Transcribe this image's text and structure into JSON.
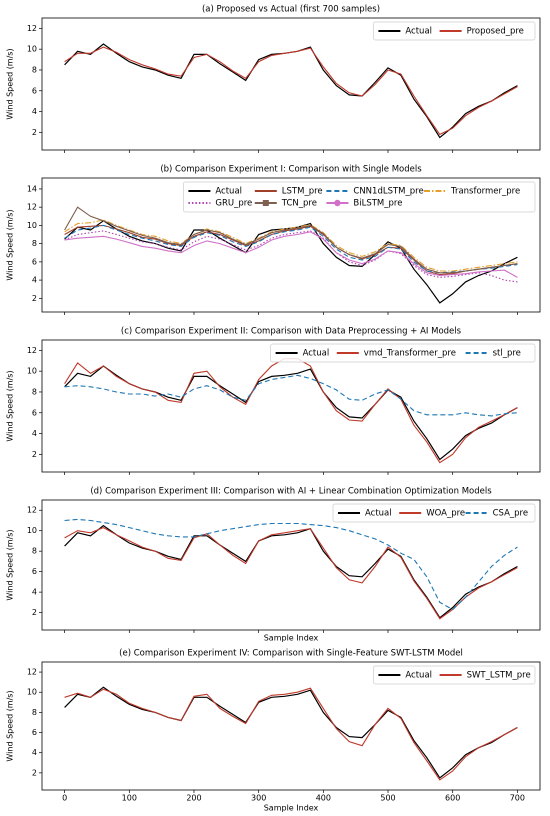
{
  "chart_data": [
    {
      "type": "line",
      "title": "(a) Proposed vs Actual (first 700 samples)",
      "ylabel": "Wind Speed (m/s)",
      "x": [
        0,
        20,
        40,
        60,
        80,
        100,
        120,
        140,
        160,
        180,
        200,
        220,
        240,
        260,
        280,
        300,
        320,
        340,
        360,
        380,
        400,
        420,
        440,
        460,
        480,
        500,
        520,
        540,
        560,
        580,
        600,
        620,
        640,
        660,
        680,
        700
      ],
      "series": [
        {
          "name": "Actual",
          "color": "#000000",
          "dash": "solid",
          "values": [
            8.5,
            9.8,
            9.5,
            10.5,
            9.6,
            8.8,
            8.3,
            8.0,
            7.5,
            7.2,
            9.5,
            9.5,
            8.6,
            7.8,
            7.0,
            9.0,
            9.5,
            9.6,
            9.8,
            10.2,
            8.0,
            6.5,
            5.6,
            5.5,
            6.8,
            8.2,
            7.5,
            5.2,
            3.5,
            1.5,
            2.5,
            3.8,
            4.5,
            5.0,
            5.8,
            6.5
          ]
        },
        {
          "name": "Proposed_pre",
          "color": "#c0392b",
          "dash": "solid",
          "values": [
            8.8,
            9.6,
            9.6,
            10.2,
            9.7,
            9.0,
            8.5,
            8.1,
            7.6,
            7.4,
            9.2,
            9.5,
            8.8,
            7.9,
            7.2,
            8.8,
            9.4,
            9.6,
            9.8,
            10.1,
            8.3,
            6.7,
            5.8,
            5.5,
            6.6,
            8.0,
            7.6,
            5.5,
            3.6,
            1.8,
            2.4,
            3.6,
            4.4,
            5.0,
            5.7,
            6.4
          ]
        }
      ],
      "xlim": [
        -35,
        735
      ],
      "xticks": [
        0,
        100,
        200,
        300,
        400,
        500,
        600,
        700
      ],
      "show_xticklabels": false,
      "ylim": [
        0.3,
        13
      ],
      "yticks": [
        2,
        4,
        6,
        8,
        10,
        12
      ],
      "legend": "upper right",
      "legend_ncol": 2
    },
    {
      "type": "line",
      "title": "(b) Comparison Experiment I: Comparison with Single Models",
      "ylabel": "Wind Speed (m/s)",
      "x": [
        0,
        20,
        40,
        60,
        80,
        100,
        120,
        140,
        160,
        180,
        200,
        220,
        240,
        260,
        280,
        300,
        320,
        340,
        360,
        380,
        400,
        420,
        440,
        460,
        480,
        500,
        520,
        540,
        560,
        580,
        600,
        620,
        640,
        660,
        680,
        700
      ],
      "series": [
        {
          "name": "Actual",
          "color": "#000000",
          "dash": "solid",
          "values": [
            8.5,
            9.8,
            9.5,
            10.5,
            9.6,
            8.8,
            8.3,
            8.0,
            7.5,
            7.2,
            9.5,
            9.5,
            8.6,
            7.8,
            7.0,
            9.0,
            9.5,
            9.6,
            9.8,
            10.2,
            8.0,
            6.5,
            5.6,
            5.5,
            6.8,
            8.2,
            7.5,
            5.2,
            3.5,
            1.5,
            2.5,
            3.8,
            4.5,
            5.0,
            5.8,
            6.5
          ]
        },
        {
          "name": "LSTM_pre",
          "color": "#a0402a",
          "dash": "solid",
          "values": [
            9.0,
            9.8,
            9.9,
            10.0,
            9.6,
            9.2,
            8.7,
            8.5,
            8.0,
            7.8,
            8.8,
            9.3,
            9.0,
            8.4,
            7.8,
            8.3,
            9.0,
            9.4,
            9.6,
            9.9,
            9.0,
            7.6,
            6.8,
            6.3,
            6.8,
            7.6,
            7.5,
            6.2,
            5.0,
            4.6,
            4.7,
            5.0,
            5.2,
            5.4,
            5.6,
            5.8
          ]
        },
        {
          "name": "CNN1dLSTM_pre",
          "color": "#1f77b4",
          "dash": "dashed",
          "values": [
            8.6,
            9.5,
            9.7,
            10.0,
            9.5,
            9.0,
            8.6,
            8.3,
            7.9,
            7.7,
            8.7,
            9.2,
            8.9,
            8.2,
            7.7,
            8.2,
            9.0,
            9.3,
            9.5,
            9.8,
            8.8,
            7.4,
            6.5,
            6.2,
            6.6,
            7.6,
            7.4,
            6.0,
            5.0,
            4.8,
            4.9,
            5.0,
            5.2,
            5.3,
            5.5,
            5.7
          ]
        },
        {
          "name": "Transformer_pre",
          "color": "#e69f2a",
          "dash": "dashdot",
          "values": [
            9.3,
            10.2,
            10.3,
            10.6,
            10.0,
            9.5,
            9.0,
            8.8,
            8.3,
            8.0,
            9.0,
            9.6,
            9.3,
            8.7,
            8.0,
            8.6,
            9.3,
            9.6,
            9.8,
            10.1,
            9.2,
            7.8,
            7.0,
            6.6,
            7.1,
            8.0,
            7.8,
            6.5,
            5.4,
            5.0,
            5.0,
            5.2,
            5.4,
            5.6,
            5.8,
            6.0
          ]
        },
        {
          "name": "GRU_pre",
          "color": "#b040b0",
          "dash": "dotted",
          "values": [
            8.4,
            9.0,
            9.2,
            9.4,
            9.0,
            8.6,
            8.2,
            8.0,
            7.6,
            7.3,
            8.2,
            8.8,
            8.5,
            7.9,
            7.3,
            7.8,
            8.6,
            9.0,
            9.2,
            9.4,
            8.6,
            7.0,
            6.0,
            5.6,
            6.2,
            7.2,
            6.9,
            5.6,
            4.6,
            4.3,
            4.4,
            4.6,
            4.8,
            4.5,
            4.0,
            3.8
          ]
        },
        {
          "name": "TCN_pre",
          "color": "#7f5f4f",
          "dash": "solid",
          "marker": "square",
          "values": [
            9.5,
            12.0,
            11.0,
            10.5,
            9.9,
            9.4,
            8.9,
            8.6,
            8.1,
            7.9,
            9.0,
            9.5,
            9.2,
            8.5,
            7.9,
            8.5,
            9.2,
            9.5,
            9.7,
            10.0,
            9.1,
            7.6,
            6.8,
            6.4,
            6.9,
            7.9,
            7.7,
            6.3,
            5.2,
            4.8,
            4.8,
            5.0,
            5.2,
            5.4,
            5.6,
            5.8
          ]
        },
        {
          "name": "BiLSTM_pre",
          "color": "#d070c8",
          "dash": "solid",
          "marker": "circle",
          "values": [
            8.4,
            8.6,
            8.7,
            8.8,
            8.5,
            8.1,
            7.7,
            7.5,
            7.2,
            7.0,
            7.8,
            8.3,
            8.0,
            7.5,
            7.0,
            7.6,
            8.4,
            8.8,
            9.0,
            9.3,
            8.5,
            7.0,
            6.2,
            5.8,
            6.3,
            7.2,
            7.0,
            5.8,
            4.8,
            4.5,
            4.6,
            4.7,
            4.9,
            5.0,
            5.1,
            4.3
          ]
        }
      ],
      "xlim": [
        -35,
        735
      ],
      "xticks": [
        0,
        100,
        200,
        300,
        400,
        500,
        600,
        700
      ],
      "show_xticklabels": false,
      "ylim": [
        0.5,
        15.2
      ],
      "yticks": [
        2,
        4,
        6,
        8,
        10,
        12,
        14
      ],
      "legend": "upper right",
      "legend_ncol": 4
    },
    {
      "type": "line",
      "title": "(c) Comparison Experiment II: Comparison with Data Preprocessing + AI Models",
      "ylabel": "Wind Speed (m/s)",
      "x": [
        0,
        20,
        40,
        60,
        80,
        100,
        120,
        140,
        160,
        180,
        200,
        220,
        240,
        260,
        280,
        300,
        320,
        340,
        360,
        380,
        400,
        420,
        440,
        460,
        480,
        500,
        520,
        540,
        560,
        580,
        600,
        620,
        640,
        660,
        680,
        700
      ],
      "series": [
        {
          "name": "Actual",
          "color": "#000000",
          "dash": "solid",
          "values": [
            8.5,
            9.8,
            9.5,
            10.5,
            9.6,
            8.8,
            8.3,
            8.0,
            7.5,
            7.2,
            9.5,
            9.5,
            8.6,
            7.8,
            7.0,
            9.0,
            9.5,
            9.6,
            9.8,
            10.2,
            8.0,
            6.5,
            5.6,
            5.5,
            6.8,
            8.2,
            7.5,
            5.2,
            3.5,
            1.5,
            2.5,
            3.8,
            4.5,
            5.0,
            5.8,
            6.5
          ]
        },
        {
          "name": "vmd_Transformer_pre",
          "color": "#c0392b",
          "dash": "solid",
          "values": [
            8.8,
            10.8,
            9.8,
            10.5,
            9.5,
            8.8,
            8.3,
            8.0,
            7.2,
            7.0,
            9.8,
            10.0,
            8.5,
            7.5,
            6.8,
            9.2,
            10.5,
            11.2,
            11.2,
            10.5,
            8.0,
            6.2,
            5.3,
            5.2,
            6.8,
            8.3,
            7.3,
            4.8,
            3.2,
            1.2,
            2.0,
            3.6,
            4.6,
            5.2,
            5.8,
            6.5
          ]
        },
        {
          "name": "stl_pre",
          "color": "#1f77b4",
          "dash": "dashed",
          "values": [
            8.5,
            8.6,
            8.5,
            8.3,
            8.0,
            7.8,
            7.8,
            7.6,
            7.8,
            7.5,
            8.3,
            8.6,
            8.2,
            7.5,
            7.2,
            8.8,
            9.2,
            9.4,
            9.6,
            9.3,
            8.8,
            8.2,
            7.3,
            7.2,
            7.8,
            8.2,
            7.3,
            6.2,
            5.8,
            5.8,
            5.8,
            6.0,
            5.8,
            5.7,
            5.9,
            6.0
          ]
        }
      ],
      "xlim": [
        -35,
        735
      ],
      "xticks": [
        0,
        100,
        200,
        300,
        400,
        500,
        600,
        700
      ],
      "show_xticklabels": false,
      "ylim": [
        0.3,
        13
      ],
      "yticks": [
        2,
        4,
        6,
        8,
        10,
        12
      ],
      "legend": "upper right",
      "legend_ncol": 3
    },
    {
      "type": "line",
      "title": "(d) Comparison Experiment III: Comparison with AI + Linear Combination Optimization Models",
      "ylabel": "Wind Speed (m/s)",
      "xlabel": "Sample Index",
      "x": [
        0,
        20,
        40,
        60,
        80,
        100,
        120,
        140,
        160,
        180,
        200,
        220,
        240,
        260,
        280,
        300,
        320,
        340,
        360,
        380,
        400,
        420,
        440,
        460,
        480,
        500,
        520,
        540,
        560,
        580,
        600,
        620,
        640,
        660,
        680,
        700
      ],
      "series": [
        {
          "name": "Actual",
          "color": "#000000",
          "dash": "solid",
          "values": [
            8.5,
            9.8,
            9.5,
            10.5,
            9.6,
            8.8,
            8.3,
            8.0,
            7.5,
            7.2,
            9.5,
            9.5,
            8.6,
            7.8,
            7.0,
            9.0,
            9.5,
            9.6,
            9.8,
            10.2,
            8.0,
            6.5,
            5.6,
            5.5,
            6.8,
            8.2,
            7.5,
            5.2,
            3.5,
            1.5,
            2.5,
            3.8,
            4.5,
            5.0,
            5.8,
            6.5
          ]
        },
        {
          "name": "WOA_pre",
          "color": "#c0392b",
          "dash": "solid",
          "values": [
            9.3,
            10.0,
            9.8,
            10.3,
            9.6,
            9.0,
            8.4,
            8.0,
            7.3,
            7.1,
            9.3,
            9.7,
            8.6,
            7.6,
            6.8,
            9.0,
            9.6,
            9.8,
            10.0,
            10.2,
            8.3,
            6.4,
            5.2,
            4.9,
            6.5,
            8.4,
            7.4,
            5.1,
            3.4,
            1.4,
            2.3,
            3.5,
            4.4,
            5.0,
            5.7,
            6.4
          ]
        },
        {
          "name": "CSA_pre",
          "color": "#1f77b4",
          "dash": "dashed",
          "values": [
            11.0,
            11.1,
            11.0,
            10.8,
            10.6,
            10.3,
            10.0,
            9.7,
            9.5,
            9.4,
            9.4,
            9.7,
            10.0,
            10.2,
            10.4,
            10.6,
            10.7,
            10.7,
            10.7,
            10.6,
            10.5,
            10.3,
            10.0,
            9.6,
            9.2,
            8.6,
            7.8,
            7.2,
            5.5,
            3.0,
            2.3,
            3.5,
            5.0,
            6.5,
            7.6,
            8.4
          ]
        }
      ],
      "xlim": [
        -35,
        735
      ],
      "xticks": [
        0,
        100,
        200,
        300,
        400,
        500,
        600,
        700
      ],
      "show_xticklabels": false,
      "ylim": [
        0.3,
        13
      ],
      "yticks": [
        2,
        4,
        6,
        8,
        10,
        12
      ],
      "legend": "upper right",
      "legend_ncol": 3
    },
    {
      "type": "line",
      "title": "(e) Comparison Experiment IV: Comparison with Single-Feature SWT-LSTM Model",
      "ylabel": "Wind Speed (m/s)",
      "xlabel": "Sample Index",
      "x": [
        0,
        20,
        40,
        60,
        80,
        100,
        120,
        140,
        160,
        180,
        200,
        220,
        240,
        260,
        280,
        300,
        320,
        340,
        360,
        380,
        400,
        420,
        440,
        460,
        480,
        500,
        520,
        540,
        560,
        580,
        600,
        620,
        640,
        660,
        680,
        700
      ],
      "series": [
        {
          "name": "Actual",
          "color": "#000000",
          "dash": "solid",
          "values": [
            8.5,
            9.8,
            9.5,
            10.5,
            9.6,
            8.8,
            8.3,
            8.0,
            7.5,
            7.2,
            9.5,
            9.5,
            8.6,
            7.8,
            7.0,
            9.0,
            9.5,
            9.6,
            9.8,
            10.2,
            8.0,
            6.5,
            5.6,
            5.5,
            6.8,
            8.2,
            7.5,
            5.2,
            3.5,
            1.5,
            2.5,
            3.8,
            4.5,
            5.0,
            5.8,
            6.5
          ]
        },
        {
          "name": "SWT_LSTM_pre",
          "color": "#c0392b",
          "dash": "solid",
          "values": [
            9.5,
            9.9,
            9.5,
            10.3,
            9.8,
            8.9,
            8.4,
            8.0,
            7.5,
            7.2,
            9.6,
            9.8,
            8.4,
            7.6,
            6.9,
            9.1,
            9.7,
            9.8,
            10.0,
            10.4,
            8.4,
            6.4,
            5.1,
            4.7,
            6.8,
            8.4,
            7.4,
            5.0,
            3.2,
            1.3,
            2.2,
            3.6,
            4.5,
            5.1,
            5.8,
            6.5
          ]
        }
      ],
      "xlim": [
        -35,
        735
      ],
      "xticks": [
        0,
        100,
        200,
        300,
        400,
        500,
        600,
        700
      ],
      "show_xticklabels": true,
      "ylim": [
        0.3,
        13
      ],
      "yticks": [
        2,
        4,
        6,
        8,
        10,
        12
      ],
      "legend": "upper right",
      "legend_ncol": 2
    }
  ]
}
